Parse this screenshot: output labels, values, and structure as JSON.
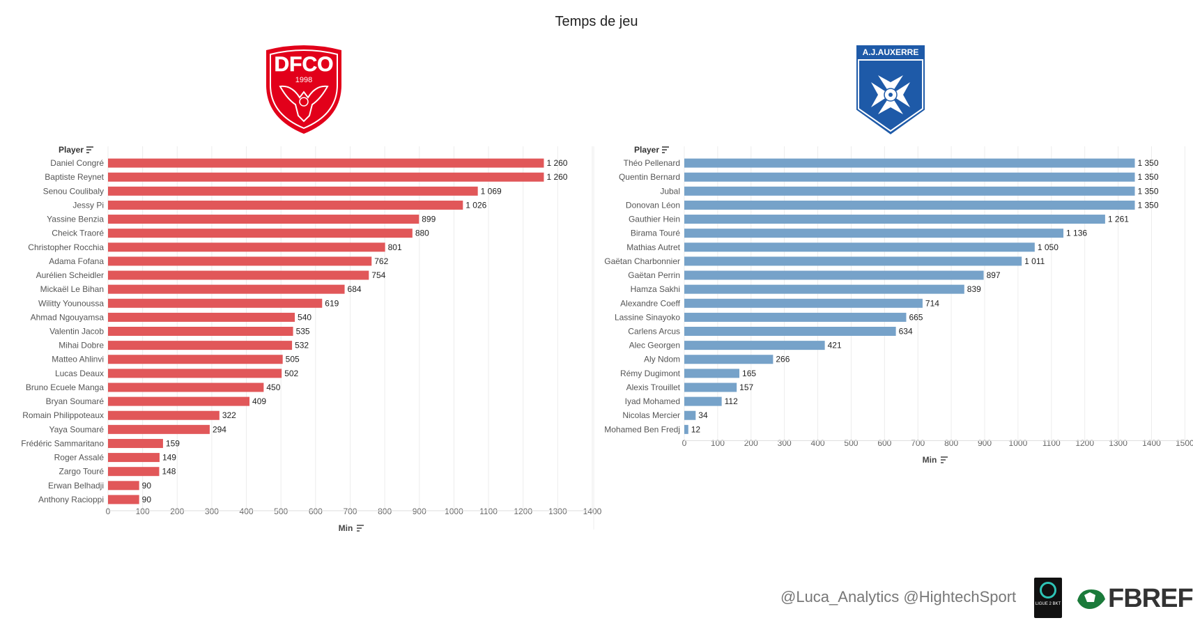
{
  "title": "Temps de jeu",
  "credit": "@Luca_Analytics @HightechSport",
  "logos": {
    "dfco_letters": "DFCO",
    "dfco_year": "1998",
    "auxerre_name": "A.J.AUXERRE",
    "ligue2_text": "LIGUE 2 BKT",
    "fbref_text": "FBREF"
  },
  "colors": {
    "dijon": "#e15759",
    "auxerre": "#76a2c9",
    "dfco_red": "#e2001a",
    "aja_blue": "#1e5aa8"
  },
  "chart_data": [
    {
      "type": "bar",
      "orientation": "horizontal",
      "team": "Dijon FCO",
      "ylabel": "Player",
      "xlabel": "Min",
      "xlim": [
        0,
        1400
      ],
      "xticks": [
        0,
        100,
        200,
        300,
        400,
        500,
        600,
        700,
        800,
        900,
        1000,
        1100,
        1200,
        1300,
        1400
      ],
      "grid": true,
      "categories": [
        "Daniel Congré",
        "Baptiste Reynet",
        "Senou Coulibaly",
        "Jessy Pi",
        "Yassine Benzia",
        "Cheick Traoré",
        "Christopher Rocchia",
        "Adama Fofana",
        "Aurélien Scheidler",
        "Mickaël Le Bihan",
        "Wilitty Younoussa",
        "Ahmad Ngouyamsa",
        "Valentin Jacob",
        "Mihai Dobre",
        "Matteo Ahlinvi",
        "Lucas Deaux",
        "Bruno Ecuele Manga",
        "Bryan Soumaré",
        "Romain Philippoteaux",
        "Yaya Soumaré",
        "Frédéric Sammaritano",
        "Roger Assalé",
        "Zargo Touré",
        "Erwan Belhadji",
        "Anthony Racioppi"
      ],
      "values": [
        1260,
        1260,
        1069,
        1026,
        899,
        880,
        801,
        762,
        754,
        684,
        619,
        540,
        535,
        532,
        505,
        502,
        450,
        409,
        322,
        294,
        159,
        149,
        148,
        90,
        90
      ],
      "labels": [
        "1 260",
        "1 260",
        "1 069",
        "1 026",
        "899",
        "880",
        "801",
        "762",
        "754",
        "684",
        "619",
        "540",
        "535",
        "532",
        "505",
        "502",
        "450",
        "409",
        "322",
        "294",
        "159",
        "149",
        "148",
        "90",
        "90"
      ]
    },
    {
      "type": "bar",
      "orientation": "horizontal",
      "team": "AJ Auxerre",
      "ylabel": "Player",
      "xlabel": "Min",
      "xlim": [
        0,
        1500
      ],
      "xticks": [
        0,
        100,
        200,
        300,
        400,
        500,
        600,
        700,
        800,
        900,
        1000,
        1100,
        1200,
        1300,
        1400,
        1500
      ],
      "grid": true,
      "categories": [
        "Théo Pellenard",
        "Quentin Bernard",
        "Jubal",
        "Donovan Léon",
        "Gauthier Hein",
        "Birama Touré",
        "Mathias Autret",
        "Gaëtan Charbonnier",
        "Gaëtan Perrin",
        "Hamza Sakhi",
        "Alexandre Coeff",
        "Lassine Sinayoko",
        "Carlens Arcus",
        "Alec Georgen",
        "Aly Ndom",
        "Rémy Dugimont",
        "Alexis Trouillet",
        "Iyad Mohamed",
        "Nicolas Mercier",
        "Mohamed Ben Fredj"
      ],
      "values": [
        1350,
        1350,
        1350,
        1350,
        1261,
        1136,
        1050,
        1011,
        897,
        839,
        714,
        665,
        634,
        421,
        266,
        165,
        157,
        112,
        34,
        12
      ],
      "labels": [
        "1 350",
        "1 350",
        "1 350",
        "1 350",
        "1 261",
        "1 136",
        "1 050",
        "1 011",
        "897",
        "839",
        "714",
        "665",
        "634",
        "421",
        "266",
        "165",
        "157",
        "112",
        "34",
        "12"
      ]
    }
  ]
}
